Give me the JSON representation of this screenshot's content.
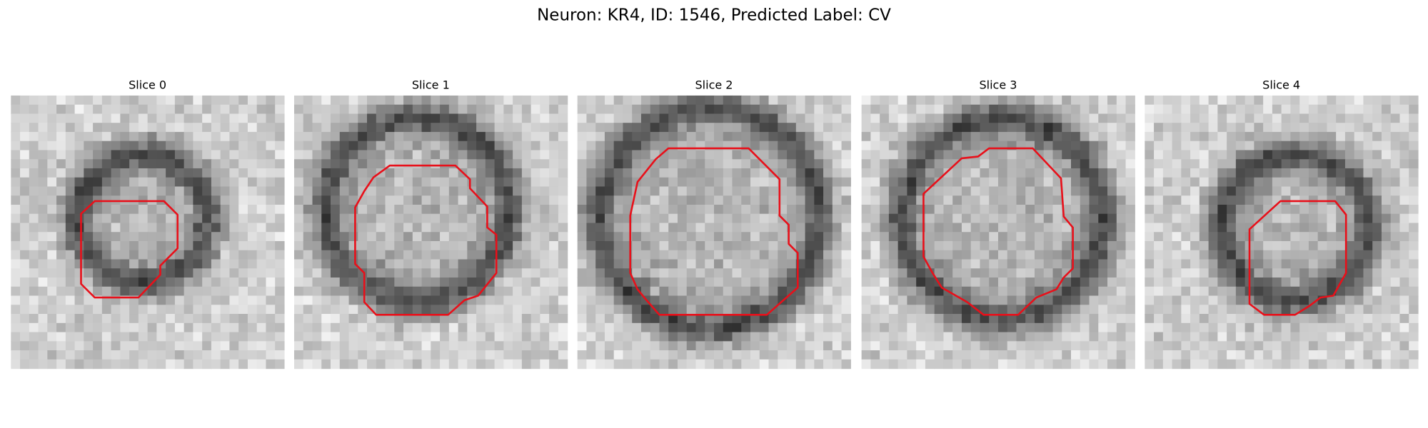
{
  "figure": {
    "title": "Neuron: KR4, ID: 1546, Predicted Label: CV",
    "panels": [
      {
        "title": "Slice 0"
      },
      {
        "title": "Slice 1"
      },
      {
        "title": "Slice 2"
      },
      {
        "title": "Slice 3"
      },
      {
        "title": "Slice 4"
      }
    ]
  }
}
